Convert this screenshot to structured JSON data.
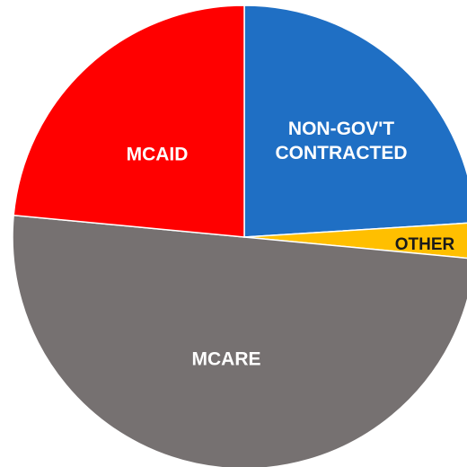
{
  "chart_data": {
    "type": "pie",
    "title": "",
    "slices": [
      {
        "label": "NON-GOV'T CONTRACTED",
        "label_lines": [
          "NON-GOV'T",
          "CONTRACTED"
        ],
        "value": 24,
        "color": "#1f6fc4",
        "label_color": "#ffffff"
      },
      {
        "label": "OTHER",
        "label_lines": [
          "OTHER"
        ],
        "value": 2.5,
        "color": "#ffbf00",
        "label_color": "#1a1a1a"
      },
      {
        "label": "MCARE",
        "label_lines": [
          "MCARE"
        ],
        "value": 50,
        "color": "#767171",
        "label_color": "#ffffff"
      },
      {
        "label": "MCAID",
        "label_lines": [
          "MCAID"
        ],
        "value": 23.5,
        "color": "#ff0000",
        "label_color": "#ffffff"
      }
    ],
    "start_angle_deg": 0,
    "direction": "clockwise",
    "legend": "none",
    "data_labels": "inside"
  }
}
